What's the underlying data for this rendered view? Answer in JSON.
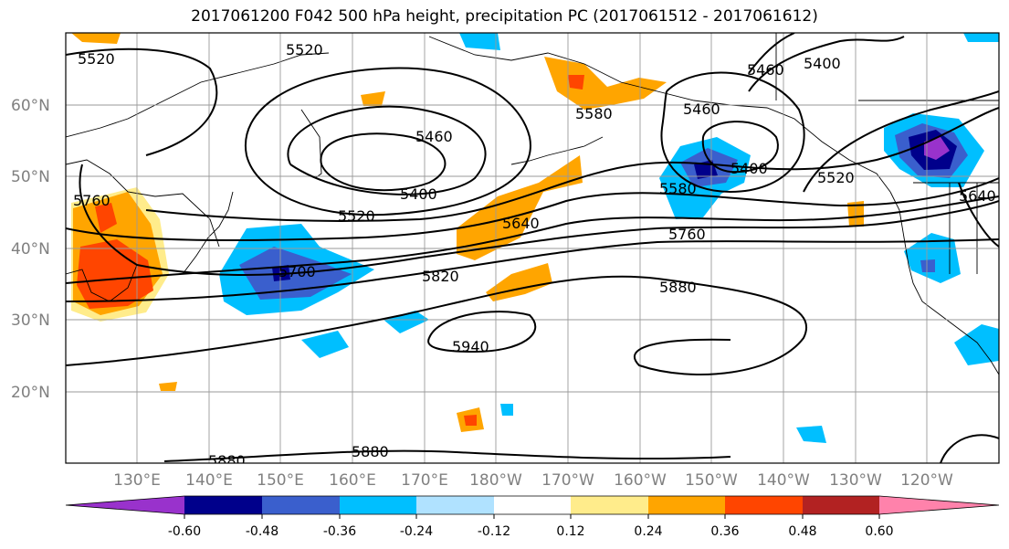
{
  "title": "2017061200 F042 500 hPa height, precipitation PC (2017061512 - 2017061612)",
  "lat_labels": [
    "60°N",
    "50°N",
    "40°N",
    "30°N",
    "20°N"
  ],
  "lon_labels": [
    "130°E",
    "140°E",
    "150°E",
    "160°E",
    "170°E",
    "180°W",
    "170°W",
    "160°W",
    "150°W",
    "140°W",
    "130°W",
    "120°W"
  ],
  "contour_labels": [
    "5520",
    "5520",
    "5460",
    "5400",
    "5520",
    "5640",
    "5760",
    "5700",
    "5820",
    "5880",
    "5940",
    "5880",
    "5880",
    "5580",
    "5400",
    "5460",
    "5460",
    "5400",
    "5520",
    "5640",
    "5760",
    "5580"
  ],
  "colorbar": {
    "tick_labels": [
      "-0.60",
      "-0.48",
      "-0.36",
      "-0.24",
      "-0.12",
      "0.12",
      "0.24",
      "0.36",
      "0.48",
      "0.60"
    ],
    "colors": [
      "#9932cc",
      "#00008b",
      "#3a5fcd",
      "#00bfff",
      "#b0e2ff",
      "#ffffff",
      "#ffec8b",
      "#ffa500",
      "#ff4500",
      "#b22222",
      "#ff82ab"
    ]
  },
  "colors": {
    "contour": "#000000",
    "grid": "#9a9a9a",
    "coast": "#000000"
  }
}
